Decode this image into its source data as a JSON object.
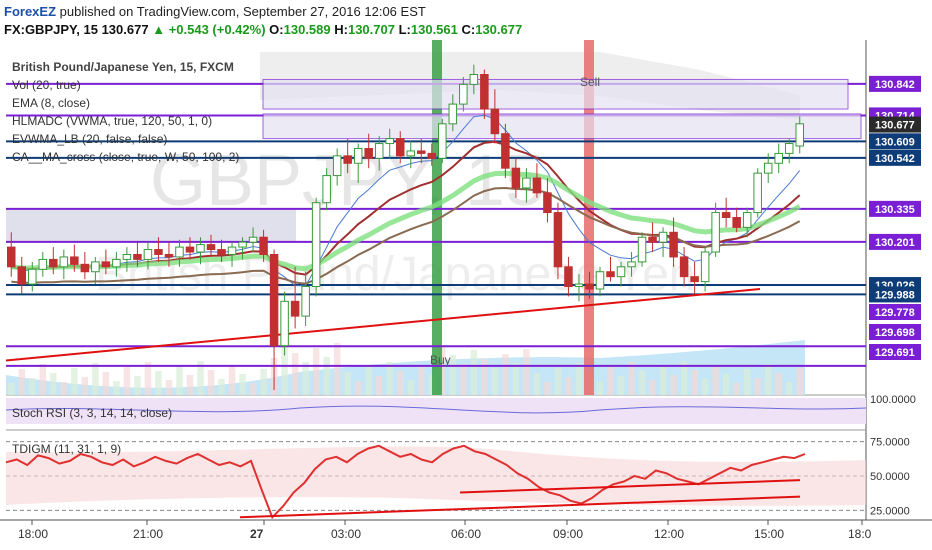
{
  "header": {
    "brand": "ForexEZ",
    "published_text": "published on TradingView.com, September 27, 2016 12:06 EST",
    "symbol": "FX:GBPJPY, 15",
    "last": "130.677",
    "change": "+0.543 (+0.42%)",
    "o_label": "O:",
    "o": "130.589",
    "h_label": "H:",
    "h": "130.707",
    "l_label": "L:",
    "l": "130.561",
    "c_label": "C:",
    "c": "130.677"
  },
  "legend": {
    "title": "British Pound/Japanese Yen, 15, FXCM",
    "items": [
      "Vol (20, true)",
      "EMA (8, close)",
      "HLMADC (VWMA, true, 120, 50, 1, 0)",
      "EVWMA_LB (20, false, false)",
      "CA__MA_cross (close, true, W, 50, 100, 2)"
    ]
  },
  "watermark": {
    "big": "GBPJPY, 15",
    "sub": "British Pound/Japanese Yen"
  },
  "signals": {
    "buy": "Buy",
    "sell": "Sell"
  },
  "colors": {
    "up_candle": "#3a9a3a",
    "down_candle": "#c03030",
    "level_line": "#7b1fd4",
    "support_line": "#0d3c78",
    "trend_line": "#e01010",
    "buy_band": "#2e9b3c",
    "sell_band": "#e66a6a",
    "last_price_tag": "#2a2a2a"
  },
  "chart_data": [
    {
      "type": "candlestick",
      "title": "British Pound/Japanese Yen, 15, FXCM",
      "x_ticks": [
        "18:00",
        "21:00",
        "27",
        "03:00",
        "06:00",
        "09:00",
        "12:00",
        "15:00",
        "18:0"
      ],
      "price_tags": [
        {
          "value": 130.842,
          "label": "130.842",
          "style": "purple"
        },
        {
          "value": 130.714,
          "label": "130.714",
          "style": "purple"
        },
        {
          "value": 130.677,
          "label": "130.677",
          "style": "last"
        },
        {
          "value": 130.609,
          "label": "130.609",
          "style": "navy"
        },
        {
          "value": 130.542,
          "label": "130.542",
          "style": "navy"
        },
        {
          "value": 130.335,
          "label": "130.335",
          "style": "purple"
        },
        {
          "value": 130.201,
          "label": "130.201",
          "style": "purple"
        },
        {
          "value": 130.026,
          "label": "130.026",
          "style": "navy"
        },
        {
          "value": 129.988,
          "label": "129.988",
          "style": "navy"
        },
        {
          "value": 129.778,
          "label": "129.778",
          "style": "purple"
        },
        {
          "value": 129.698,
          "label": "129.698",
          "style": "purple"
        },
        {
          "value": 129.691,
          "label": "129.691",
          "style": "purple"
        }
      ],
      "ohlc": [
        [
          130.18,
          130.24,
          130.06,
          130.1
        ],
        [
          130.1,
          130.14,
          129.99,
          130.03
        ],
        [
          130.03,
          130.12,
          130.0,
          130.09
        ],
        [
          130.09,
          130.16,
          130.06,
          130.13
        ],
        [
          130.13,
          130.18,
          130.07,
          130.1
        ],
        [
          130.1,
          130.17,
          130.05,
          130.14
        ],
        [
          130.14,
          130.19,
          130.08,
          130.11
        ],
        [
          130.11,
          130.16,
          130.05,
          130.08
        ],
        [
          130.08,
          130.14,
          130.03,
          130.12
        ],
        [
          130.12,
          130.17,
          130.07,
          130.1
        ],
        [
          130.1,
          130.16,
          130.06,
          130.13
        ],
        [
          130.13,
          130.18,
          130.08,
          130.15
        ],
        [
          130.15,
          130.2,
          130.1,
          130.13
        ],
        [
          130.13,
          130.2,
          130.09,
          130.17
        ],
        [
          130.17,
          130.22,
          130.12,
          130.15
        ],
        [
          130.15,
          130.2,
          130.1,
          130.14
        ],
        [
          130.14,
          130.21,
          130.1,
          130.18
        ],
        [
          130.18,
          130.22,
          130.13,
          130.16
        ],
        [
          130.16,
          130.22,
          130.11,
          130.19
        ],
        [
          130.19,
          130.23,
          130.14,
          130.17
        ],
        [
          130.17,
          130.21,
          130.12,
          130.15
        ],
        [
          130.15,
          130.2,
          130.1,
          130.18
        ],
        [
          130.18,
          130.22,
          130.13,
          130.2
        ],
        [
          130.2,
          130.26,
          130.16,
          130.22
        ],
        [
          130.22,
          130.25,
          130.12,
          130.15
        ],
        [
          130.15,
          130.17,
          129.6,
          129.78
        ],
        [
          129.78,
          130.0,
          129.74,
          129.96
        ],
        [
          129.96,
          130.1,
          129.85,
          129.9
        ],
        [
          129.9,
          130.08,
          129.86,
          130.02
        ],
        [
          130.02,
          130.38,
          129.98,
          130.36
        ],
        [
          130.36,
          130.5,
          130.33,
          130.47
        ],
        [
          130.47,
          130.58,
          130.43,
          130.55
        ],
        [
          130.55,
          130.62,
          130.48,
          130.52
        ],
        [
          130.52,
          130.6,
          130.44,
          130.58
        ],
        [
          130.58,
          130.64,
          130.5,
          130.54
        ],
        [
          130.54,
          130.63,
          130.49,
          130.6
        ],
        [
          130.6,
          130.66,
          130.54,
          130.62
        ],
        [
          130.62,
          130.65,
          130.52,
          130.55
        ],
        [
          130.55,
          130.61,
          130.5,
          130.57
        ],
        [
          130.57,
          130.62,
          130.52,
          130.56
        ],
        [
          130.56,
          130.6,
          130.51,
          130.54
        ],
        [
          130.54,
          130.7,
          130.52,
          130.68
        ],
        [
          130.68,
          130.8,
          130.65,
          130.76
        ],
        [
          130.76,
          130.87,
          130.73,
          130.84
        ],
        [
          130.84,
          130.92,
          130.8,
          130.88
        ],
        [
          130.88,
          130.9,
          130.7,
          130.74
        ],
        [
          130.74,
          130.82,
          130.6,
          130.64
        ],
        [
          130.64,
          130.68,
          130.46,
          130.5
        ],
        [
          130.5,
          130.54,
          130.38,
          130.42
        ],
        [
          130.42,
          130.5,
          130.36,
          130.46
        ],
        [
          130.46,
          130.52,
          130.38,
          130.4
        ],
        [
          130.4,
          130.46,
          130.28,
          130.32
        ],
        [
          130.32,
          130.36,
          130.05,
          130.1
        ],
        [
          130.1,
          130.14,
          129.98,
          130.02
        ],
        [
          130.02,
          130.07,
          129.96,
          130.03
        ],
        [
          130.03,
          130.08,
          129.97,
          130.01
        ],
        [
          130.01,
          130.1,
          129.98,
          130.08
        ],
        [
          130.08,
          130.14,
          130.04,
          130.06
        ],
        [
          130.06,
          130.12,
          130.02,
          130.1
        ],
        [
          130.1,
          130.16,
          130.06,
          130.12
        ],
        [
          130.12,
          130.24,
          130.1,
          130.22
        ],
        [
          130.22,
          130.28,
          130.16,
          130.2
        ],
        [
          130.2,
          130.26,
          130.14,
          130.24
        ],
        [
          130.24,
          130.3,
          130.1,
          130.14
        ],
        [
          130.14,
          130.18,
          130.02,
          130.06
        ],
        [
          130.06,
          130.12,
          129.99,
          130.04
        ],
        [
          130.04,
          130.18,
          130.0,
          130.16
        ],
        [
          130.16,
          130.36,
          130.14,
          130.32
        ],
        [
          130.32,
          130.38,
          130.26,
          130.3
        ],
        [
          130.3,
          130.34,
          130.24,
          130.26
        ],
        [
          130.26,
          130.34,
          130.22,
          130.32
        ],
        [
          130.32,
          130.5,
          130.3,
          130.48
        ],
        [
          130.48,
          130.56,
          130.44,
          130.52
        ],
        [
          130.52,
          130.6,
          130.48,
          130.56
        ],
        [
          130.56,
          130.62,
          130.52,
          130.6
        ],
        [
          130.59,
          130.71,
          130.56,
          130.68
        ]
      ]
    },
    {
      "type": "line",
      "title": "Stoch RSI (3, 3, 14, 14, close)",
      "y_ticks": [
        {
          "value": 100,
          "label": "100.0000"
        }
      ],
      "series": []
    },
    {
      "type": "line",
      "title": "TDIGM (11, 31, 1, 9)",
      "y_ticks": [
        {
          "value": 75,
          "label": "75.0000"
        },
        {
          "value": 50,
          "label": "50.0000"
        },
        {
          "value": 25,
          "label": "25.0000"
        }
      ],
      "series": [
        {
          "values": [
            60,
            62,
            58,
            65,
            63,
            59,
            61,
            66,
            64,
            60,
            58,
            62,
            57,
            60,
            64,
            61,
            59,
            63,
            66,
            62,
            58,
            60,
            57,
            61,
            40,
            20,
            28,
            38,
            45,
            55,
            62,
            64,
            60,
            66,
            70,
            72,
            68,
            64,
            66,
            62,
            60,
            66,
            70,
            72,
            68,
            66,
            62,
            58,
            52,
            48,
            42,
            38,
            36,
            32,
            30,
            34,
            40,
            44,
            46,
            50,
            48,
            54,
            52,
            48,
            46,
            44,
            48,
            52,
            56,
            54,
            58,
            60,
            62,
            64,
            63,
            66
          ]
        }
      ]
    }
  ]
}
